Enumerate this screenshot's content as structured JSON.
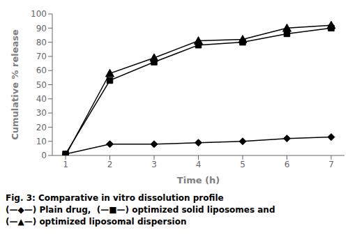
{
  "chart_data": {
    "type": "line",
    "x": [
      1,
      2,
      3,
      4,
      5,
      6,
      7
    ],
    "series": [
      {
        "color": "#000000",
        "marker": "diamond",
        "values": [
          1,
          8,
          8,
          9,
          10,
          12,
          13
        ]
      },
      {
        "color": "#000000",
        "marker": "square",
        "values": [
          1,
          53,
          66,
          78,
          80,
          86,
          90
        ]
      },
      {
        "color": "#000000",
        "marker": "triangle",
        "values": [
          0,
          58,
          69,
          81,
          82,
          90,
          92
        ]
      }
    ],
    "xlabel": "Time (h)",
    "ylabel": "Cumulative % release",
    "xlim": [
      0.7,
      7.3
    ],
    "ylim": [
      0,
      100
    ],
    "xticks": [
      1,
      2,
      3,
      4,
      5,
      6,
      7
    ],
    "yticks": [
      0,
      10,
      20,
      30,
      40,
      50,
      60,
      70,
      80,
      90,
      100
    ],
    "grid": false,
    "annotations": [
      "Fig. 3: Comparative in vitro dissolution profile",
      "(—◆—) Plain drug,  (—■—) optimized solid liposomes and",
      "(—▲—) optimized liposomal dispersion"
    ]
  }
}
